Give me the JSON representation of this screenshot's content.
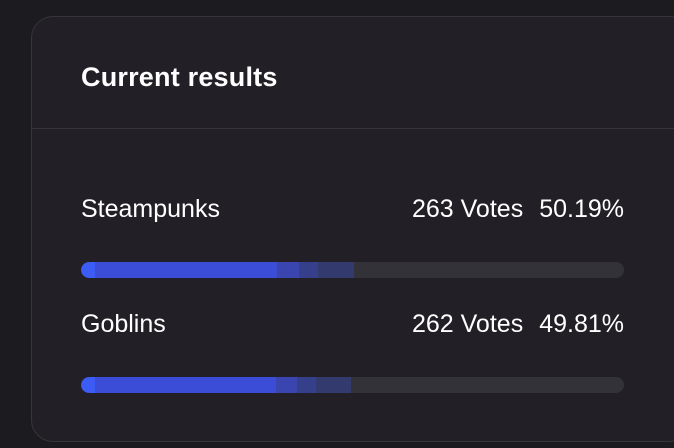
{
  "poll": {
    "title": "Current results",
    "colors": {
      "bar_accent": "#3d5cf5",
      "bar_primary": "#3b4cd6",
      "bar_mid": "#3a45b0",
      "bar_fade": "#363f8a",
      "bar_tail": "#333a6e",
      "track": "#333238"
    },
    "options": [
      {
        "name": "Steampunks",
        "votes_label": "263 Votes",
        "percent_label": "50.19%",
        "percent": 50.19
      },
      {
        "name": "Goblins",
        "votes_label": "262 Votes",
        "percent_label": "49.81%",
        "percent": 49.81
      }
    ]
  }
}
